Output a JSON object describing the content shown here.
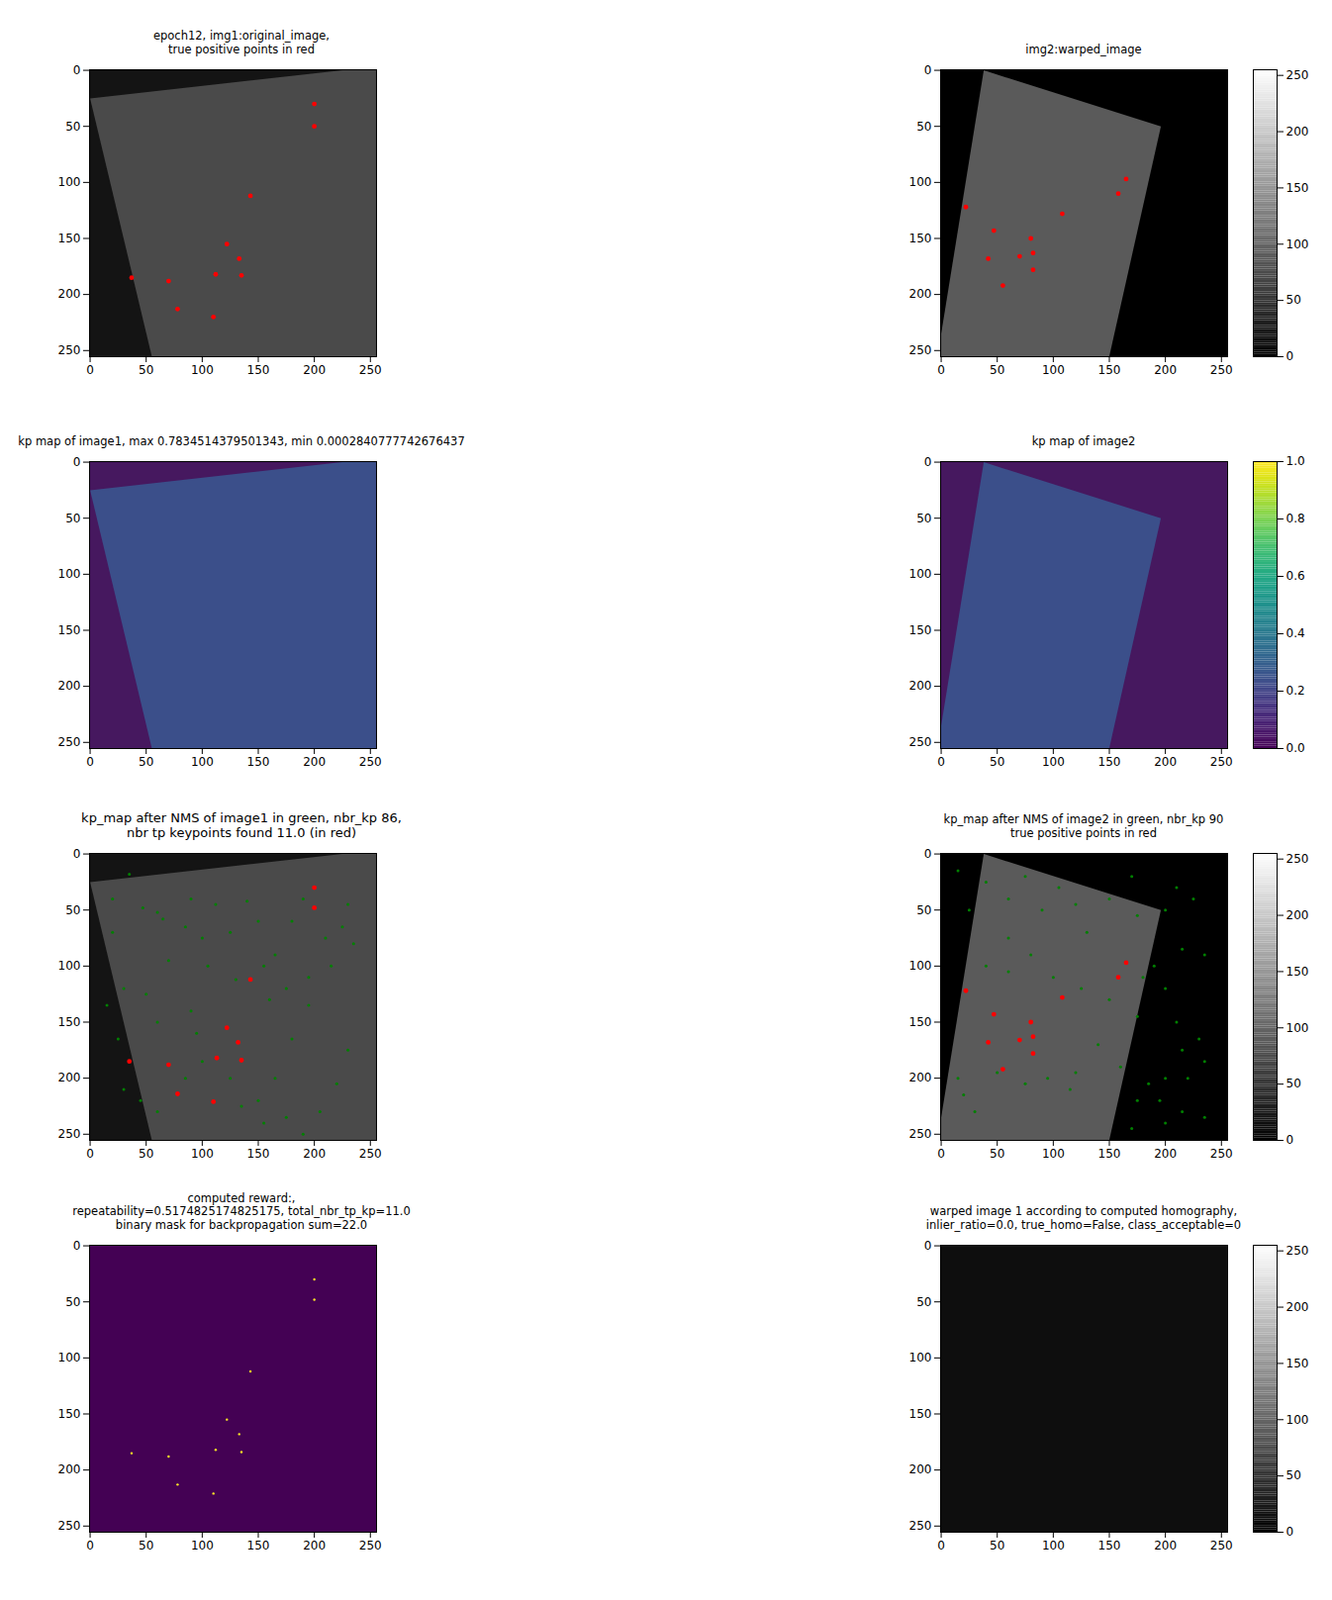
{
  "chart_data": [
    {
      "type": "image",
      "title": "epoch12, img1:original_image,\ntrue positive points in red",
      "xlim": [
        -0.5,
        255.5
      ],
      "ylim": [
        255.5,
        -0.5
      ],
      "xticks": [
        0,
        50,
        100,
        150,
        200,
        250
      ],
      "yticks": [
        0,
        50,
        100,
        150,
        200,
        250
      ],
      "colors": [
        "#141414",
        "#4a4a4a"
      ],
      "image_outline": {
        "x": [
          0,
          225,
          255,
          255,
          55
        ],
        "y": [
          25,
          0,
          0,
          255,
          255
        ]
      },
      "points": [
        {
          "color": "red",
          "x": [
            200,
            200,
            143,
            122,
            133,
            112,
            37,
            70,
            78,
            110,
            135
          ],
          "y": [
            30,
            50,
            112,
            155,
            168,
            182,
            185,
            188,
            213,
            220,
            183
          ]
        }
      ]
    },
    {
      "type": "image",
      "title": "img2:warped_image",
      "xlim": [
        -0.5,
        255.5
      ],
      "ylim": [
        255.5,
        -0.5
      ],
      "xticks": [
        0,
        50,
        100,
        150,
        200,
        250
      ],
      "yticks": [
        0,
        50,
        100,
        150,
        200,
        250
      ],
      "colors": [
        "#000000",
        "#5a5a5a"
      ],
      "image_outline": {
        "x": [
          38,
          196,
          150,
          0,
          0
        ],
        "y": [
          0,
          50,
          255,
          255,
          235
        ]
      },
      "points": [
        {
          "color": "red",
          "x": [
            165,
            158,
            108,
            22,
            47,
            80,
            82,
            70,
            42,
            82,
            55
          ],
          "y": [
            97,
            110,
            128,
            122,
            143,
            150,
            163,
            166,
            168,
            178,
            192
          ]
        }
      ],
      "colorbar": {
        "lim": [
          0,
          255
        ],
        "ticks": [
          0,
          50,
          100,
          150,
          200,
          250
        ],
        "color": "gray"
      }
    },
    {
      "type": "heatmap",
      "title": "kp map of image1, max 0.7834514379501343, min 0.0002840777742676437",
      "xlim": [
        -0.5,
        255.5
      ],
      "ylim": [
        255.5,
        -0.5
      ],
      "xticks": [
        0,
        50,
        100,
        150,
        200,
        250
      ],
      "yticks": [
        0,
        50,
        100,
        150,
        200,
        250
      ],
      "colors": [
        "#46185f",
        "#3b4f8a"
      ],
      "image_outline": {
        "x": [
          0,
          225,
          255,
          255,
          55
        ],
        "y": [
          25,
          0,
          0,
          255,
          255
        ]
      }
    },
    {
      "type": "heatmap",
      "title": "kp map of image2",
      "xlim": [
        -0.5,
        255.5
      ],
      "ylim": [
        255.5,
        -0.5
      ],
      "xticks": [
        0,
        50,
        100,
        150,
        200,
        250
      ],
      "yticks": [
        0,
        50,
        100,
        150,
        200,
        250
      ],
      "colors": [
        "#46185f",
        "#3b4f8a"
      ],
      "image_outline": {
        "x": [
          38,
          196,
          150,
          0,
          0
        ],
        "y": [
          0,
          50,
          255,
          255,
          235
        ]
      },
      "colorbar": {
        "lim": [
          0,
          1
        ],
        "ticks": [
          {
            "value": 0,
            "label": "0.0"
          },
          {
            "value": 0.2,
            "label": "0.2"
          },
          {
            "value": 0.4,
            "label": "0.4"
          },
          {
            "value": 0.6,
            "label": "0.6"
          },
          {
            "value": 0.8,
            "label": "0.8"
          },
          {
            "value": 1,
            "label": "1.0"
          }
        ],
        "color": "viridis"
      }
    },
    {
      "type": "image",
      "title": "kp_map after NMS of image1 in green, nbr_kp 86,\nnbr tp keypoints found 11.0 (in red)",
      "xlim": [
        -0.5,
        255.5
      ],
      "ylim": [
        255.5,
        -0.5
      ],
      "xticks": [
        0,
        50,
        100,
        150,
        200,
        250
      ],
      "yticks": [
        0,
        50,
        100,
        150,
        200,
        250
      ],
      "colors": [
        "#141414",
        "#4a4a4a"
      ],
      "image_outline": {
        "x": [
          0,
          225,
          255,
          255,
          55
        ],
        "y": [
          25,
          0,
          0,
          255,
          255
        ]
      },
      "points": [
        {
          "color": "green",
          "x": [
            20,
            35,
            47,
            60,
            65,
            70,
            85,
            90,
            100,
            105,
            112,
            125,
            130,
            140,
            150,
            155,
            160,
            165,
            175,
            180,
            190,
            195,
            210,
            215,
            225,
            230,
            235,
            180,
            195,
            165,
            150,
            155,
            175,
            190,
            205,
            220,
            230,
            30,
            15,
            25,
            50,
            60,
            90,
            95,
            100,
            85,
            45,
            30,
            135,
            125,
            60,
            20
          ],
          "y": [
            40,
            18,
            48,
            52,
            58,
            95,
            65,
            40,
            75,
            100,
            45,
            70,
            112,
            42,
            60,
            100,
            130,
            90,
            120,
            60,
            40,
            110,
            75,
            100,
            65,
            45,
            80,
            165,
            135,
            200,
            220,
            240,
            235,
            250,
            230,
            205,
            175,
            120,
            135,
            165,
            125,
            150,
            140,
            160,
            185,
            200,
            220,
            210,
            225,
            200,
            230,
            70
          ]
        },
        {
          "color": "red",
          "x": [
            200,
            200,
            143,
            122,
            132,
            113,
            35,
            70,
            78,
            110,
            135
          ],
          "y": [
            30,
            48,
            112,
            155,
            168,
            182,
            185,
            188,
            214,
            221,
            184
          ]
        }
      ]
    },
    {
      "type": "image",
      "title": "kp_map after NMS of image2 in green, nbr_kp 90\ntrue positive points in red",
      "xlim": [
        -0.5,
        255.5
      ],
      "ylim": [
        255.5,
        -0.5
      ],
      "xticks": [
        0,
        50,
        100,
        150,
        200,
        250
      ],
      "yticks": [
        0,
        50,
        100,
        150,
        200,
        250
      ],
      "colors": [
        "#000000",
        "#5a5a5a"
      ],
      "image_outline": {
        "x": [
          38,
          196,
          150,
          0,
          0
        ],
        "y": [
          0,
          50,
          255,
          255,
          235
        ]
      },
      "points": [
        {
          "color": "green",
          "x": [
            15,
            40,
            60,
            75,
            90,
            105,
            120,
            130,
            150,
            170,
            175,
            200,
            210,
            225,
            235,
            215,
            180,
            200,
            190,
            150,
            125,
            175,
            210,
            230,
            235,
            215,
            220,
            200,
            185,
            160,
            175,
            195,
            215,
            235,
            200,
            170,
            140,
            120,
            115,
            95,
            75,
            50,
            20,
            15,
            30,
            40,
            60,
            80,
            100,
            25,
            60
          ],
          "y": [
            15,
            25,
            40,
            20,
            50,
            30,
            45,
            70,
            40,
            20,
            55,
            50,
            30,
            40,
            90,
            85,
            110,
            120,
            100,
            130,
            120,
            145,
            150,
            165,
            185,
            175,
            200,
            200,
            205,
            190,
            220,
            220,
            230,
            235,
            240,
            245,
            170,
            195,
            210,
            200,
            205,
            195,
            215,
            200,
            230,
            100,
            105,
            90,
            110,
            50,
            75
          ]
        },
        {
          "color": "red",
          "x": [
            165,
            158,
            108,
            22,
            47,
            80,
            82,
            70,
            42,
            82,
            55
          ],
          "y": [
            97,
            110,
            128,
            122,
            143,
            150,
            163,
            166,
            168,
            178,
            192
          ]
        }
      ],
      "colorbar": {
        "lim": [
          0,
          255
        ],
        "ticks": [
          0,
          50,
          100,
          150,
          200,
          250
        ],
        "color": "gray"
      }
    },
    {
      "type": "heatmap",
      "title": "computed reward:,\nrepeatability=0.5174825174825175, total_nbr_tp_kp=11.0\nbinary mask for backpropagation sum=22.0",
      "xlim": [
        -0.5,
        255.5
      ],
      "ylim": [
        255.5,
        -0.5
      ],
      "xticks": [
        0,
        50,
        100,
        150,
        200,
        250
      ],
      "yticks": [
        0,
        50,
        100,
        150,
        200,
        250
      ],
      "colors": [
        "#440154"
      ],
      "points": [
        {
          "color": "#fde725",
          "x": [
            200,
            200,
            143,
            122,
            133,
            112,
            37,
            70,
            78,
            110,
            135
          ],
          "y": [
            30,
            48,
            112,
            155,
            168,
            182,
            185,
            188,
            213,
            221,
            184
          ]
        }
      ]
    },
    {
      "type": "image",
      "title": "warped image 1 according to computed homography,\ninlier_ratio=0.0, true_homo=False, class_acceptable=0",
      "xlim": [
        -0.5,
        255.5
      ],
      "ylim": [
        255.5,
        -0.5
      ],
      "xticks": [
        0,
        50,
        100,
        150,
        200,
        250
      ],
      "yticks": [
        0,
        50,
        100,
        150,
        200,
        250
      ],
      "colors": [
        "#0e0e0e"
      ],
      "colorbar": {
        "lim": [
          0,
          255
        ],
        "ticks": [
          0,
          50,
          100,
          150,
          200,
          250
        ],
        "color": "gray"
      }
    }
  ]
}
